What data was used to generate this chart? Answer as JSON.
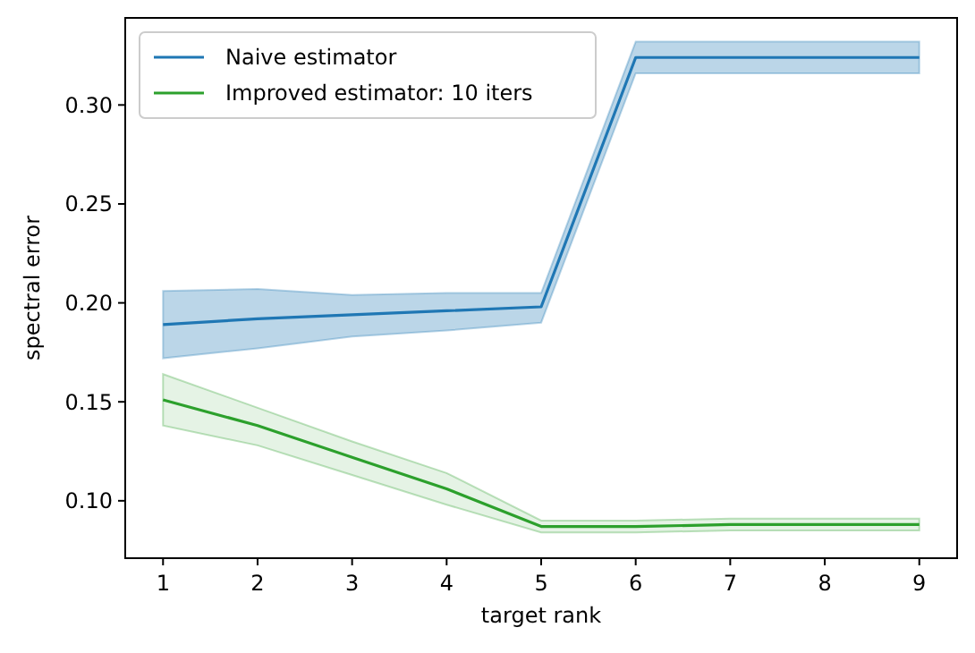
{
  "chart_data": {
    "type": "line",
    "xlabel": "target rank",
    "ylabel": "spectral error",
    "x": [
      1,
      2,
      3,
      4,
      5,
      6,
      7,
      8,
      9
    ],
    "xlim": [
      0.6,
      9.4
    ],
    "xticks": [
      1,
      2,
      3,
      4,
      5,
      6,
      7,
      8,
      9
    ],
    "ylim": [
      0.071,
      0.344
    ],
    "yticks": [
      {
        "value": 0.1,
        "label": "0.10"
      },
      {
        "value": 0.15,
        "label": "0.15"
      },
      {
        "value": 0.2,
        "label": "0.20"
      },
      {
        "value": 0.25,
        "label": "0.25"
      },
      {
        "value": 0.3,
        "label": "0.30"
      }
    ],
    "legend": "top left",
    "grid": false,
    "series": [
      {
        "name": "Naive estimator",
        "color": "#1f77b4",
        "values": [
          0.189,
          0.192,
          0.194,
          0.196,
          0.198,
          0.324,
          0.324,
          0.324,
          0.324
        ],
        "lower": [
          0.172,
          0.177,
          0.183,
          0.186,
          0.19,
          0.316,
          0.316,
          0.316,
          0.316
        ],
        "upper": [
          0.206,
          0.207,
          0.204,
          0.205,
          0.205,
          0.332,
          0.332,
          0.332,
          0.332
        ]
      },
      {
        "name": "Improved estimator: 10 iters",
        "color": "#2ca02c",
        "values": [
          0.151,
          0.138,
          0.122,
          0.106,
          0.087,
          0.087,
          0.088,
          0.088,
          0.088
        ],
        "lower": [
          0.138,
          0.128,
          0.113,
          0.098,
          0.084,
          0.084,
          0.085,
          0.085,
          0.085
        ],
        "upper": [
          0.164,
          0.147,
          0.13,
          0.114,
          0.09,
          0.09,
          0.091,
          0.091,
          0.091
        ]
      }
    ]
  }
}
